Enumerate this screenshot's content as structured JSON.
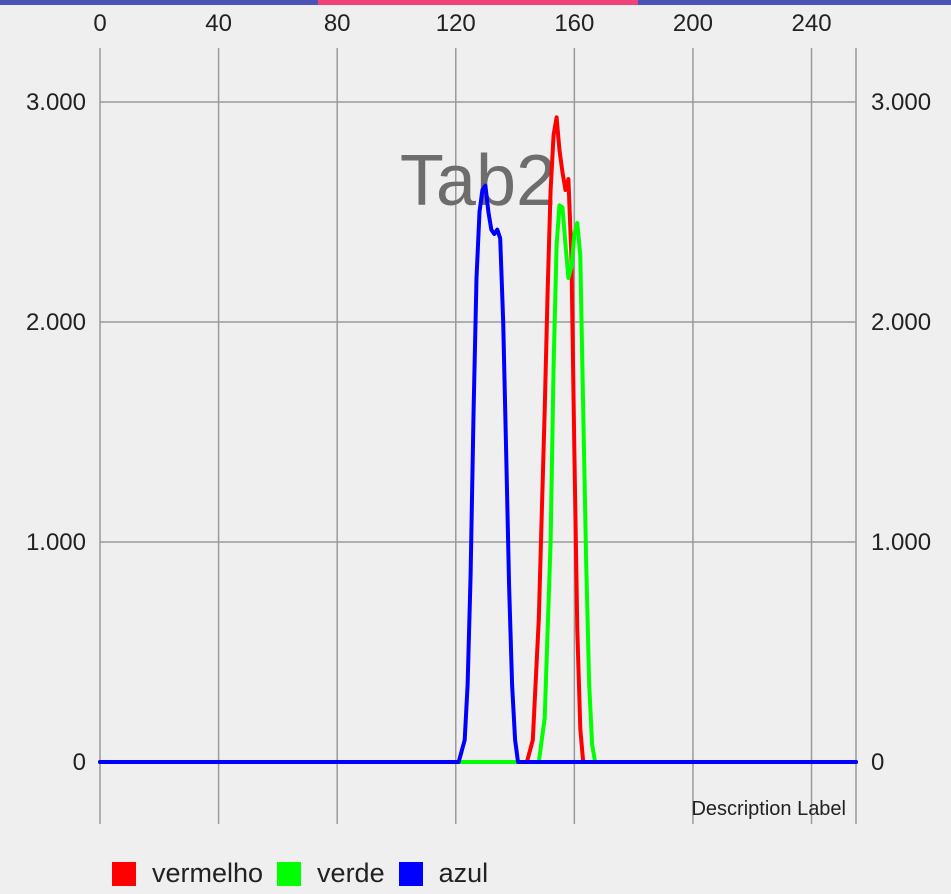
{
  "tabs": [
    {
      "label": "",
      "color": "#4a53b8",
      "active": false
    },
    {
      "label": "Tab2",
      "color": "#f0437a",
      "active": true
    },
    {
      "label": "",
      "color": "#4a53b8",
      "active": false
    }
  ],
  "chart_data": {
    "type": "line",
    "title": "Tab2",
    "description_label": "Description Label",
    "x_axis": {
      "position": "top",
      "range": [
        0,
        255
      ],
      "ticks": [
        0,
        40,
        80,
        120,
        160,
        200,
        240
      ]
    },
    "y_axis_left": {
      "range": [
        -300,
        3200
      ],
      "ticks": [
        0,
        1000,
        2000,
        3000
      ],
      "tick_labels": [
        "0",
        "1.000",
        "2.000",
        "3.000"
      ]
    },
    "y_axis_right": {
      "range": [
        -300,
        3200
      ],
      "ticks": [
        0,
        1000,
        2000,
        3000
      ],
      "tick_labels": [
        "0",
        "1.000",
        "2.000",
        "3.000"
      ]
    },
    "grid": true,
    "legend": {
      "position": "bottom-left"
    },
    "series": [
      {
        "name": "vermelho",
        "color": "#ff0000",
        "points": [
          [
            0,
            0
          ],
          [
            144,
            0
          ],
          [
            146,
            100
          ],
          [
            148,
            650
          ],
          [
            150,
            1600
          ],
          [
            151,
            2150
          ],
          [
            152,
            2600
          ],
          [
            153,
            2850
          ],
          [
            154,
            2930
          ],
          [
            155,
            2780
          ],
          [
            156,
            2680
          ],
          [
            157,
            2600
          ],
          [
            158,
            2650
          ],
          [
            159,
            2300
          ],
          [
            160,
            1400
          ],
          [
            161,
            600
          ],
          [
            162,
            150
          ],
          [
            163,
            0
          ],
          [
            255,
            0
          ]
        ]
      },
      {
        "name": "verde",
        "color": "#00ff00",
        "points": [
          [
            0,
            0
          ],
          [
            148,
            0
          ],
          [
            150,
            200
          ],
          [
            152,
            1000
          ],
          [
            153,
            1800
          ],
          [
            154,
            2350
          ],
          [
            155,
            2530
          ],
          [
            156,
            2520
          ],
          [
            157,
            2350
          ],
          [
            158,
            2200
          ],
          [
            159,
            2250
          ],
          [
            160,
            2400
          ],
          [
            161,
            2450
          ],
          [
            162,
            2300
          ],
          [
            163,
            1600
          ],
          [
            164,
            900
          ],
          [
            165,
            350
          ],
          [
            166,
            80
          ],
          [
            167,
            0
          ],
          [
            255,
            0
          ]
        ]
      },
      {
        "name": "azul",
        "color": "#0000ff",
        "points": [
          [
            0,
            0
          ],
          [
            121,
            0
          ],
          [
            123,
            100
          ],
          [
            124,
            350
          ],
          [
            125,
            850
          ],
          [
            126,
            1600
          ],
          [
            127,
            2200
          ],
          [
            128,
            2500
          ],
          [
            129,
            2600
          ],
          [
            130,
            2620
          ],
          [
            131,
            2500
          ],
          [
            132,
            2420
          ],
          [
            133,
            2400
          ],
          [
            134,
            2420
          ],
          [
            135,
            2380
          ],
          [
            136,
            2000
          ],
          [
            137,
            1400
          ],
          [
            138,
            800
          ],
          [
            139,
            350
          ],
          [
            140,
            100
          ],
          [
            141,
            0
          ],
          [
            255,
            0
          ]
        ]
      }
    ]
  }
}
